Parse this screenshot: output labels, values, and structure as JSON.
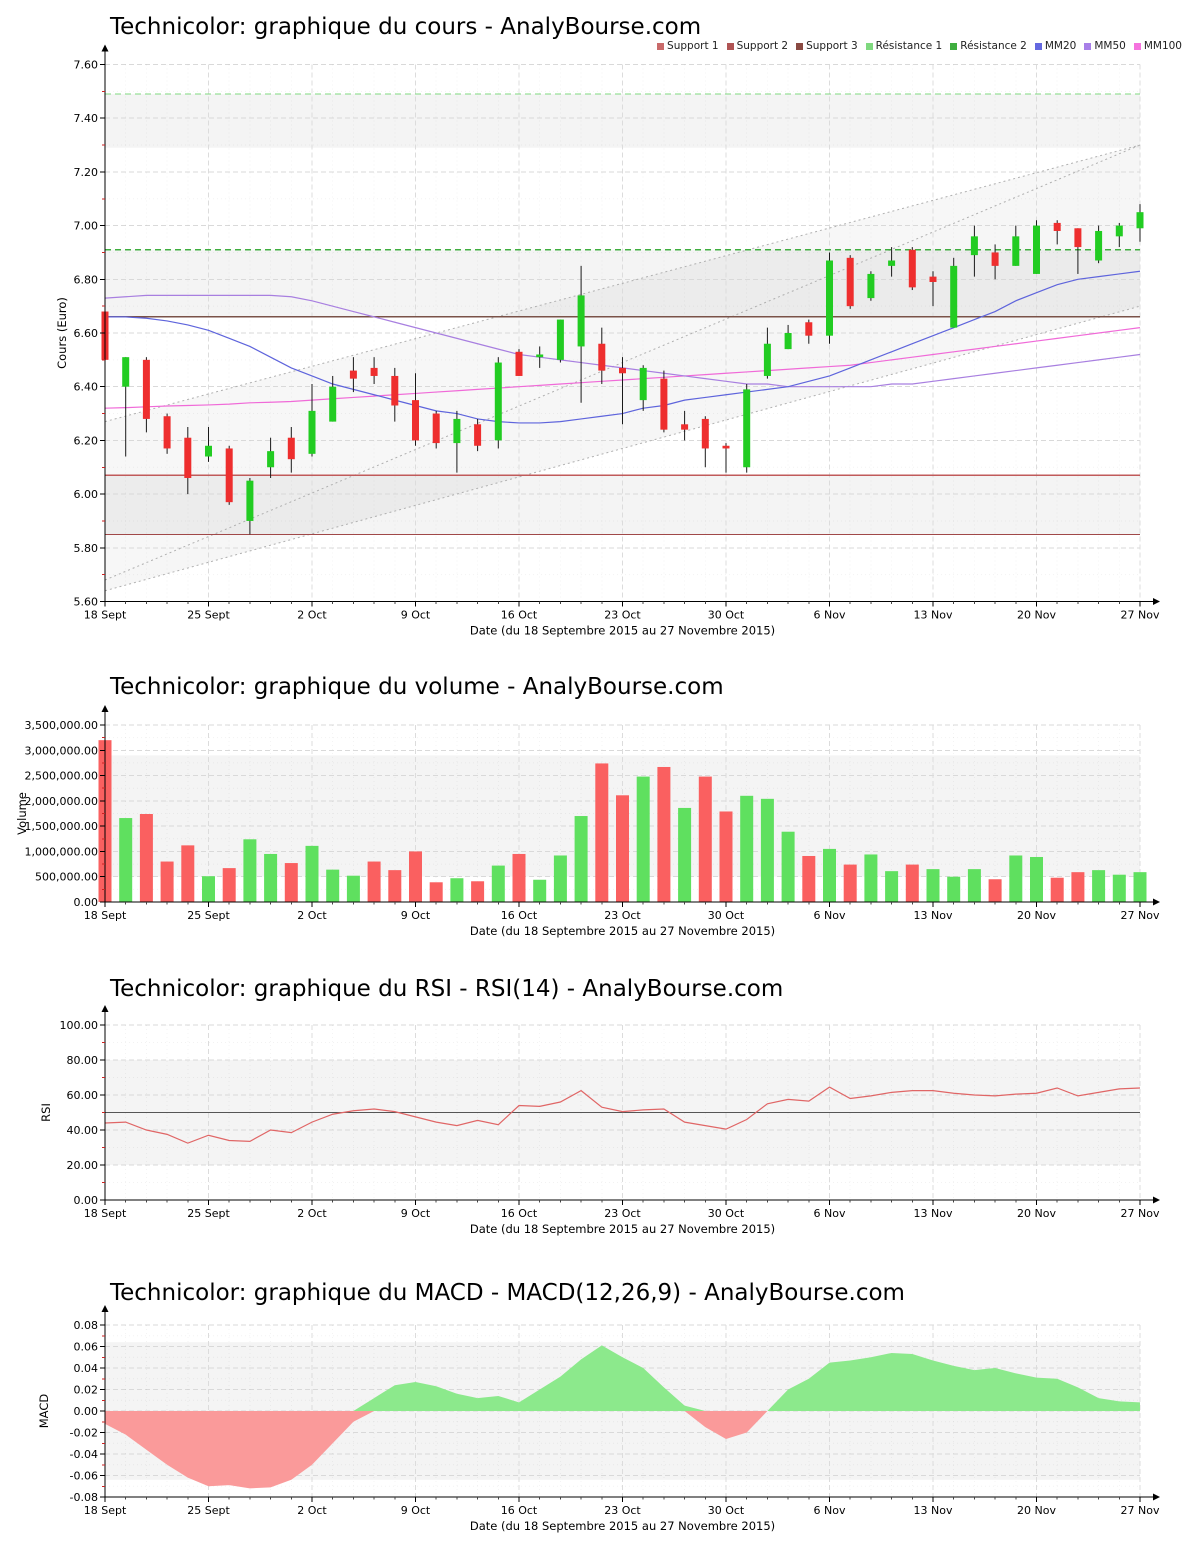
{
  "x_axis_title": "Date (du 18 Septembre 2015 au 27 Novembre 2015)",
  "x_tick_labels": [
    "18 Sept",
    "25 Sept",
    "2 Oct",
    "9 Oct",
    "16 Oct",
    "23 Oct",
    "30 Oct",
    "6 Nov",
    "13 Nov",
    "20 Nov",
    "27 Nov"
  ],
  "x_tick_indices": [
    0,
    5,
    10,
    15,
    20,
    25,
    30,
    35,
    40,
    45,
    50
  ],
  "dates": [
    "2015-09-18",
    "2015-09-21",
    "2015-09-22",
    "2015-09-23",
    "2015-09-24",
    "2015-09-25",
    "2015-09-28",
    "2015-09-29",
    "2015-09-30",
    "2015-10-01",
    "2015-10-02",
    "2015-10-05",
    "2015-10-06",
    "2015-10-07",
    "2015-10-08",
    "2015-10-09",
    "2015-10-12",
    "2015-10-13",
    "2015-10-14",
    "2015-10-15",
    "2015-10-16",
    "2015-10-19",
    "2015-10-20",
    "2015-10-21",
    "2015-10-22",
    "2015-10-23",
    "2015-10-26",
    "2015-10-27",
    "2015-10-28",
    "2015-10-29",
    "2015-10-30",
    "2015-11-02",
    "2015-11-03",
    "2015-11-04",
    "2015-11-05",
    "2015-11-06",
    "2015-11-09",
    "2015-11-10",
    "2015-11-11",
    "2015-11-12",
    "2015-11-13",
    "2015-11-16",
    "2015-11-17",
    "2015-11-18",
    "2015-11-19",
    "2015-11-20",
    "2015-11-23",
    "2015-11-24",
    "2015-11-25",
    "2015-11-26",
    "2015-11-27"
  ],
  "colors": {
    "up": "#22cc22",
    "down": "#ee2e2e",
    "vol_up": "#5fe05f",
    "vol_down": "#fa6060",
    "macd_pos": "#8ce98c",
    "macd_neg": "#fa9a9a",
    "rsi_line": "#e06666",
    "mm20": "#5e64dc",
    "mm50": "#a87fe0",
    "mm100": "#f06ad8",
    "support1": "#c05a5a",
    "support2": "#a04848",
    "support3": "#7a5248",
    "resistance1": "#7fd97f",
    "resistance2": "#3fae3f"
  },
  "legend": [
    {
      "label": "Support 1",
      "color": "#c96a6a"
    },
    {
      "label": "Support 2",
      "color": "#b05454"
    },
    {
      "label": "Support 3",
      "color": "#8a4a42"
    },
    {
      "label": "Résistance 1",
      "color": "#7fd97f"
    },
    {
      "label": "Résistance 2",
      "color": "#3fae3f"
    },
    {
      "label": "MM20",
      "color": "#6468e0"
    },
    {
      "label": "MM50",
      "color": "#a87fe8"
    },
    {
      "label": "MM100",
      "color": "#f573de"
    }
  ],
  "chart_data": [
    {
      "id": "cours",
      "type": "candlestick",
      "title": "Technicolor: graphique du cours - AnalyBourse.com",
      "ylabel": "Cours (Euro)",
      "ylim": [
        5.6,
        7.6
      ],
      "y_tick_labels": [
        "5.60",
        "5.80",
        "6.00",
        "6.20",
        "6.40",
        "6.60",
        "6.80",
        "7.00",
        "7.20",
        "7.40",
        "7.60"
      ],
      "candles": [
        [
          6.68,
          6.7,
          6.5,
          6.5
        ],
        [
          6.4,
          6.51,
          6.14,
          6.51
        ],
        [
          6.5,
          6.51,
          6.23,
          6.28
        ],
        [
          6.29,
          6.3,
          6.15,
          6.17
        ],
        [
          6.21,
          6.25,
          6.0,
          6.06
        ],
        [
          6.14,
          6.25,
          6.12,
          6.18
        ],
        [
          6.17,
          6.18,
          5.96,
          5.97
        ],
        [
          5.9,
          6.06,
          5.85,
          6.05
        ],
        [
          6.1,
          6.21,
          6.06,
          6.16
        ],
        [
          6.21,
          6.25,
          6.08,
          6.13
        ],
        [
          6.15,
          6.41,
          6.14,
          6.31
        ],
        [
          6.27,
          6.44,
          6.27,
          6.4
        ],
        [
          6.46,
          6.51,
          6.38,
          6.43
        ],
        [
          6.47,
          6.51,
          6.41,
          6.44
        ],
        [
          6.44,
          6.47,
          6.27,
          6.33
        ],
        [
          6.35,
          6.45,
          6.18,
          6.2
        ],
        [
          6.3,
          6.31,
          6.17,
          6.19
        ],
        [
          6.19,
          6.31,
          6.08,
          6.28
        ],
        [
          6.26,
          6.28,
          6.16,
          6.18
        ],
        [
          6.2,
          6.51,
          6.17,
          6.49
        ],
        [
          6.53,
          6.54,
          6.44,
          6.44
        ],
        [
          6.51,
          6.55,
          6.47,
          6.52
        ],
        [
          6.5,
          6.65,
          6.49,
          6.65
        ],
        [
          6.55,
          6.85,
          6.34,
          6.74
        ],
        [
          6.56,
          6.62,
          6.41,
          6.46
        ],
        [
          6.47,
          6.51,
          6.26,
          6.45
        ],
        [
          6.35,
          6.48,
          6.31,
          6.47
        ],
        [
          6.43,
          6.46,
          6.23,
          6.24
        ],
        [
          6.26,
          6.31,
          6.2,
          6.24
        ],
        [
          6.28,
          6.29,
          6.1,
          6.17
        ],
        [
          6.18,
          6.19,
          6.08,
          6.17
        ],
        [
          6.1,
          6.41,
          6.08,
          6.39
        ],
        [
          6.44,
          6.62,
          6.43,
          6.56
        ],
        [
          6.54,
          6.63,
          6.54,
          6.6
        ],
        [
          6.64,
          6.65,
          6.56,
          6.59
        ],
        [
          6.59,
          6.9,
          6.56,
          6.87
        ],
        [
          6.88,
          6.89,
          6.69,
          6.7
        ],
        [
          6.73,
          6.83,
          6.72,
          6.82
        ],
        [
          6.85,
          6.92,
          6.81,
          6.87
        ],
        [
          6.91,
          6.92,
          6.76,
          6.77
        ],
        [
          6.81,
          6.83,
          6.7,
          6.79
        ],
        [
          6.62,
          6.88,
          6.62,
          6.85
        ],
        [
          6.89,
          7.0,
          6.81,
          6.96
        ],
        [
          6.9,
          6.93,
          6.8,
          6.85
        ],
        [
          6.85,
          7.0,
          6.85,
          6.96
        ],
        [
          6.82,
          7.02,
          6.82,
          7.0
        ],
        [
          7.01,
          7.02,
          6.93,
          6.98
        ],
        [
          6.99,
          6.99,
          6.82,
          6.92
        ],
        [
          6.87,
          7.0,
          6.86,
          6.98
        ],
        [
          6.96,
          7.01,
          6.92,
          7.0
        ],
        [
          6.99,
          7.08,
          6.94,
          7.05
        ]
      ],
      "mm20": [
        6.66,
        6.66,
        6.655,
        6.645,
        6.63,
        6.61,
        6.58,
        6.55,
        6.51,
        6.47,
        6.44,
        6.41,
        6.39,
        6.37,
        6.35,
        6.33,
        6.31,
        6.3,
        6.28,
        6.27,
        6.265,
        6.265,
        6.27,
        6.28,
        6.29,
        6.3,
        6.32,
        6.33,
        6.35,
        6.36,
        6.37,
        6.38,
        6.39,
        6.4,
        6.42,
        6.44,
        6.47,
        6.5,
        6.53,
        6.56,
        6.59,
        6.62,
        6.65,
        6.68,
        6.72,
        6.75,
        6.78,
        6.8,
        6.81,
        6.82,
        6.83
      ],
      "mm50": [
        6.73,
        6.735,
        6.74,
        6.74,
        6.74,
        6.74,
        6.74,
        6.74,
        6.74,
        6.735,
        6.72,
        6.7,
        6.68,
        6.66,
        6.64,
        6.62,
        6.6,
        6.58,
        6.56,
        6.54,
        6.52,
        6.51,
        6.5,
        6.49,
        6.48,
        6.47,
        6.46,
        6.45,
        6.44,
        6.43,
        6.42,
        6.41,
        6.41,
        6.4,
        6.4,
        6.4,
        6.4,
        6.4,
        6.41,
        6.41,
        6.42,
        6.43,
        6.44,
        6.45,
        6.46,
        6.47,
        6.48,
        6.49,
        6.5,
        6.51,
        6.52
      ],
      "mm100": [
        6.32,
        6.322,
        6.325,
        6.328,
        6.33,
        6.332,
        6.335,
        6.34,
        6.342,
        6.345,
        6.35,
        6.355,
        6.36,
        6.365,
        6.37,
        6.375,
        6.38,
        6.385,
        6.39,
        6.395,
        6.4,
        6.405,
        6.41,
        6.415,
        6.42,
        6.425,
        6.43,
        6.435,
        6.44,
        6.445,
        6.45,
        6.455,
        6.46,
        6.465,
        6.47,
        6.475,
        6.48,
        6.49,
        6.5,
        6.51,
        6.52,
        6.53,
        6.54,
        6.55,
        6.56,
        6.57,
        6.58,
        6.59,
        6.6,
        6.61,
        6.62
      ],
      "levels": {
        "resistance1": 7.49,
        "resistance2": 6.91,
        "support3": 6.66,
        "support1": 6.07,
        "support2": 5.85
      },
      "trendlines": [
        {
          "from": [
            0,
            5.68
          ],
          "to": [
            50,
            7.3
          ]
        },
        {
          "from": [
            0,
            6.27
          ],
          "to": [
            50,
            7.3
          ]
        },
        {
          "from": [
            0,
            5.64
          ],
          "to": [
            50,
            6.7
          ]
        }
      ],
      "bands": [
        [
          6.66,
          6.91
        ],
        [
          5.85,
          6.07
        ],
        [
          7.29,
          7.49
        ]
      ]
    },
    {
      "id": "volume",
      "type": "bar",
      "title": "Technicolor: graphique du volume - AnalyBourse.com",
      "ylabel": "Volume",
      "ylim": [
        0,
        3500000
      ],
      "y_tick_labels": [
        "0.00",
        "500,000.00",
        "1,000,000.00",
        "1,500,000.00",
        "2,000,000.00",
        "2,500,000.00",
        "3,000,000.00",
        "3,500,000.00"
      ],
      "values": [
        3200000,
        1660000,
        1740000,
        800000,
        1120000,
        510000,
        670000,
        1240000,
        950000,
        770000,
        1110000,
        640000,
        520000,
        800000,
        630000,
        1000000,
        390000,
        470000,
        410000,
        720000,
        950000,
        440000,
        920000,
        1700000,
        2740000,
        2110000,
        2480000,
        2670000,
        1860000,
        2480000,
        1790000,
        2100000,
        2040000,
        1390000,
        910000,
        1050000,
        740000,
        940000,
        610000,
        740000,
        650000,
        500000,
        650000,
        450000,
        920000,
        890000,
        480000,
        590000,
        630000,
        540000,
        590000
      ],
      "up": [
        false,
        true,
        false,
        false,
        false,
        true,
        false,
        true,
        true,
        false,
        true,
        true,
        true,
        false,
        false,
        false,
        false,
        true,
        false,
        true,
        false,
        true,
        true,
        true,
        false,
        false,
        true,
        false,
        true,
        false,
        false,
        true,
        true,
        true,
        false,
        true,
        false,
        true,
        true,
        false,
        true,
        true,
        true,
        false,
        true,
        true,
        false,
        false,
        true,
        true,
        true
      ],
      "band": [
        500000,
        2900000
      ]
    },
    {
      "id": "rsi",
      "type": "line",
      "title": "Technicolor: graphique du RSI - RSI(14) - AnalyBourse.com",
      "ylabel": "RSI",
      "ylim": [
        0,
        100
      ],
      "y_tick_labels": [
        "0.00",
        "20.00",
        "40.00",
        "60.00",
        "80.00",
        "100.00"
      ],
      "midline": 50,
      "values": [
        44,
        44.5,
        40,
        37.5,
        32.5,
        37,
        34,
        33.5,
        40,
        38.5,
        44.5,
        49,
        51,
        52,
        50.5,
        47.5,
        44.5,
        42.5,
        45.5,
        43,
        54,
        53.5,
        56,
        62.5,
        53,
        50.5,
        51.5,
        52,
        44.5,
        42.5,
        40.5,
        46,
        55,
        57.5,
        56.5,
        64.5,
        58,
        59.5,
        61.5,
        62.5,
        62.5,
        61,
        60,
        59.5,
        60.5,
        61,
        64,
        59.5,
        61.5,
        63.5,
        64
      ],
      "band": [
        20,
        80
      ]
    },
    {
      "id": "macd",
      "type": "area",
      "title": "Technicolor: graphique du MACD - MACD(12,26,9) - AnalyBourse.com",
      "ylabel": "MACD",
      "ylim": [
        -0.08,
        0.08
      ],
      "y_tick_labels": [
        "-0.08",
        "-0.06",
        "-0.04",
        "-0.02",
        "0.00",
        "0.02",
        "0.04",
        "0.06",
        "0.08"
      ],
      "values": [
        -0.012,
        -0.022,
        -0.036,
        -0.05,
        -0.062,
        -0.07,
        -0.069,
        -0.072,
        -0.071,
        -0.064,
        -0.05,
        -0.03,
        -0.01,
        0.012,
        0.024,
        0.027,
        0.023,
        0.016,
        0.012,
        0.014,
        0.008,
        0.02,
        0.032,
        0.048,
        0.061,
        0.05,
        0.04,
        0.022,
        0.005,
        -0.015,
        -0.026,
        -0.02,
        0,
        0.02,
        0.03,
        0.045,
        0.047,
        0.05,
        0.054,
        0.053,
        0.047,
        0.042,
        0.038,
        0.04,
        0.035,
        0.031,
        0.03,
        0.022,
        0.012,
        0.009,
        0.008
      ],
      "band": [
        -0.064,
        0.064
      ]
    }
  ]
}
